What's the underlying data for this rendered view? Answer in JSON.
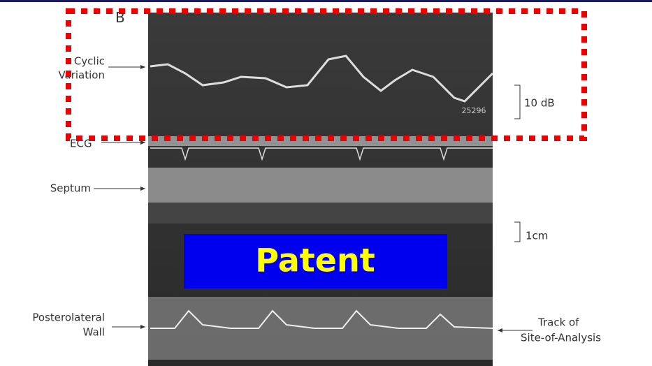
{
  "panel_label": "B",
  "labels": {
    "cyclic_variation": [
      "Cyclic",
      "Variation"
    ],
    "ecg": "ECG",
    "septum": "Septum",
    "posterolateral_wall": [
      "Posterolateral",
      "Wall"
    ],
    "track": [
      "Track of",
      "Site-of-Analysis"
    ]
  },
  "scales": {
    "db": "10 dB",
    "cm": "1cm"
  },
  "image_code": "25296",
  "stamp": "Patent"
}
